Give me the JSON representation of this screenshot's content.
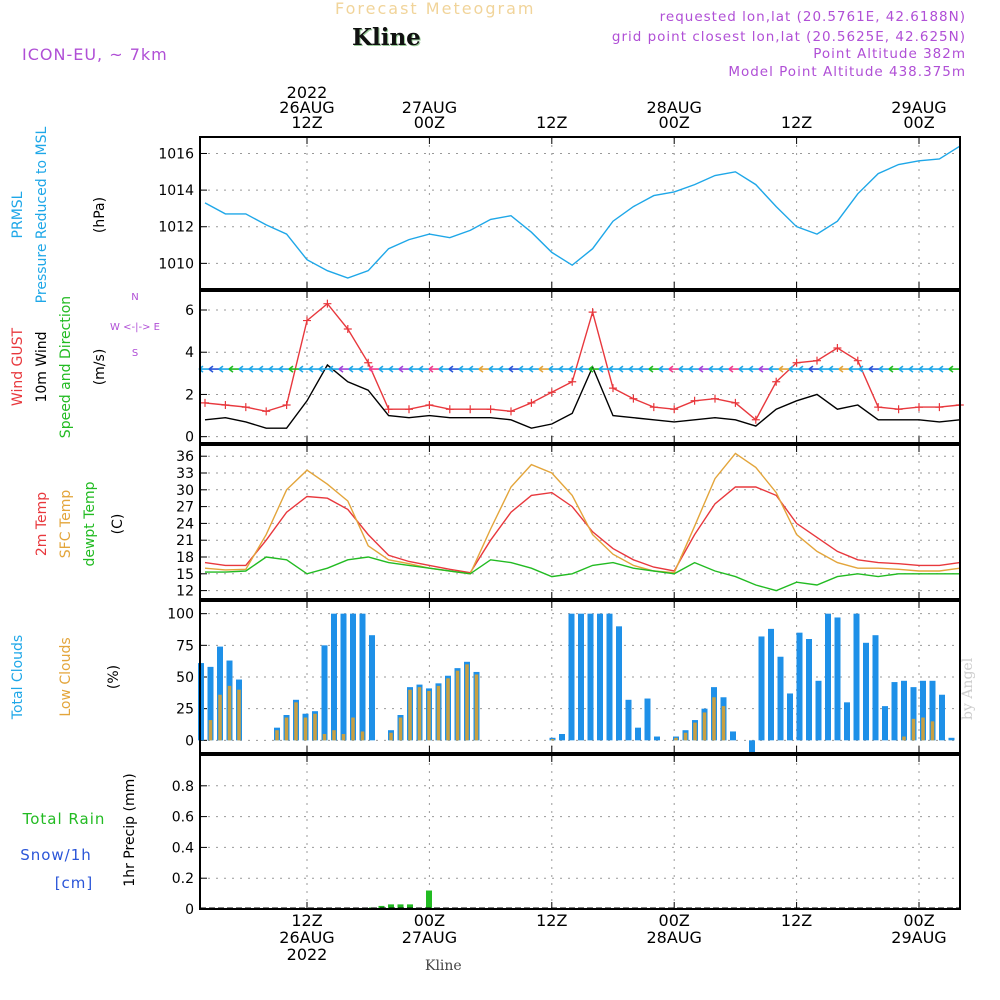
{
  "header": {
    "top_label": "Forecast Meteogram",
    "location": "Kline",
    "model": "ICON-EU, ~ 7km",
    "info_lines": [
      "requested lon,lat (20.5761E, 42.6188N)",
      "grid point closest lon,lat (20.5625E, 42.625N)",
      "Point Altitude 382m",
      "Model Point Altitude 438.375m"
    ]
  },
  "footer": {
    "location": "Kline",
    "credit": "by Angel"
  },
  "time_axis": {
    "top_ticks": [
      {
        "i": 5,
        "lines": [
          "2022",
          "26AUG",
          "12Z"
        ]
      },
      {
        "i": 11,
        "lines": [
          "27AUG",
          "00Z"
        ]
      },
      {
        "i": 17,
        "lines": [
          "12Z"
        ]
      },
      {
        "i": 23,
        "lines": [
          "28AUG",
          "00Z"
        ]
      },
      {
        "i": 29,
        "lines": [
          "12Z"
        ]
      },
      {
        "i": 35,
        "lines": [
          "29AUG",
          "00Z"
        ]
      }
    ],
    "bottom_ticks": [
      {
        "i": 5,
        "lines": [
          "12Z",
          "26AUG",
          "2022"
        ]
      },
      {
        "i": 11,
        "lines": [
          "00Z",
          "27AUG"
        ]
      },
      {
        "i": 17,
        "lines": [
          "12Z"
        ]
      },
      {
        "i": 23,
        "lines": [
          "00Z",
          "28AUG"
        ]
      },
      {
        "i": 29,
        "lines": [
          "12Z"
        ]
      },
      {
        "i": 35,
        "lines": [
          "00Z",
          "29AUG"
        ]
      }
    ]
  },
  "chart_data": [
    {
      "type": "line",
      "panel": "pressure",
      "ylabel_lines": [
        "PRMSL",
        "Pressure Reduced to MSL"
      ],
      "unit": "(hPa)",
      "yticks": [
        1010,
        1012,
        1014,
        1016
      ],
      "ylim": [
        1008.6,
        1016.9
      ],
      "grid": true,
      "series": [
        {
          "name": "PRMSL",
          "color": "#1ea7e8",
          "values": [
            1013.3,
            1012.7,
            1012.7,
            1012.1,
            1011.6,
            1010.2,
            1009.6,
            1009.2,
            1009.6,
            1010.8,
            1011.3,
            1011.6,
            1011.4,
            1011.8,
            1012.4,
            1012.6,
            1011.7,
            1010.6,
            1009.9,
            1010.8,
            1012.3,
            1013.1,
            1013.7,
            1013.9,
            1014.3,
            1014.8,
            1015.0,
            1014.3,
            1013.1,
            1012.0,
            1011.6,
            1012.3,
            1013.8,
            1014.9,
            1015.4,
            1015.6,
            1015.7,
            1016.4
          ]
        }
      ]
    },
    {
      "type": "line",
      "panel": "wind",
      "ylabel_lines": [
        "Wind GUST",
        "10m Wind",
        "Speed and Direction"
      ],
      "unit": "(m/s)",
      "compass": [
        "N",
        "W <-|-> E",
        "S"
      ],
      "yticks": [
        0,
        2,
        4,
        6
      ],
      "ylim": [
        -0.3,
        6.9
      ],
      "grid": true,
      "series": [
        {
          "name": "Wind GUST",
          "color": "#e8383d",
          "values": [
            1.6,
            1.5,
            1.4,
            1.2,
            1.5,
            5.5,
            6.3,
            5.1,
            3.5,
            1.3,
            1.3,
            1.5,
            1.3,
            1.3,
            1.3,
            1.2,
            1.6,
            2.1,
            2.6,
            5.9,
            2.3,
            1.8,
            1.4,
            1.3,
            1.7,
            1.8,
            1.6,
            0.8,
            2.6,
            3.5,
            3.6,
            4.2,
            3.6,
            1.4,
            1.3,
            1.4,
            1.4,
            1.5
          ]
        },
        {
          "name": "10m Wind",
          "color": "#000000",
          "values": [
            0.8,
            0.9,
            0.7,
            0.4,
            0.4,
            1.7,
            3.4,
            2.6,
            2.2,
            1.0,
            0.9,
            1.0,
            0.9,
            0.9,
            0.9,
            0.8,
            0.4,
            0.6,
            1.1,
            3.3,
            1.0,
            0.9,
            0.8,
            0.7,
            0.8,
            0.9,
            0.8,
            0.5,
            1.3,
            1.7,
            2.0,
            1.3,
            1.5,
            0.8,
            0.8,
            0.8,
            0.7,
            0.8
          ]
        }
      ],
      "direction_arrows_color": "#1ea7e8"
    },
    {
      "type": "line",
      "panel": "temperature",
      "ylabel_lines": [
        "2m Temp",
        "SFC Temp",
        "dewpt Temp"
      ],
      "unit": "(C)",
      "yticks": [
        12,
        15,
        18,
        21,
        24,
        27,
        30,
        33,
        36
      ],
      "ylim": [
        10.5,
        38
      ],
      "grid": true,
      "series": [
        {
          "name": "2m Temp",
          "color": "#e8383d",
          "values": [
            17.0,
            16.5,
            16.5,
            21.0,
            26.0,
            28.8,
            28.5,
            26.5,
            22.0,
            18.3,
            17.2,
            16.5,
            15.8,
            15.2,
            21.0,
            26.0,
            29.0,
            29.5,
            27.0,
            22.5,
            19.5,
            17.5,
            16.2,
            15.5,
            22.0,
            27.5,
            30.5,
            30.5,
            29.0,
            24.0,
            21.5,
            19.0,
            17.5,
            17.0,
            16.8,
            16.5,
            16.5,
            17.0
          ]
        },
        {
          "name": "SFC Temp",
          "color": "#e3a53b",
          "values": [
            16.0,
            15.7,
            15.8,
            22.0,
            30.0,
            33.5,
            31.0,
            28.0,
            20.0,
            17.5,
            16.8,
            16.0,
            15.5,
            15.0,
            23.0,
            30.5,
            34.5,
            33.0,
            29.0,
            22.0,
            18.5,
            16.5,
            15.5,
            15.2,
            23.5,
            32.0,
            36.5,
            34.0,
            29.5,
            22.0,
            19.0,
            17.0,
            16.0,
            16.0,
            15.8,
            15.5,
            15.5,
            16.0
          ]
        },
        {
          "name": "dewpt Temp",
          "color": "#22bb22",
          "values": [
            15.3,
            15.3,
            15.5,
            18.0,
            17.5,
            15.0,
            16.0,
            17.5,
            18.0,
            17.0,
            16.5,
            16.0,
            15.5,
            15.0,
            17.5,
            17.0,
            16.0,
            14.5,
            15.0,
            16.5,
            17.0,
            16.0,
            15.5,
            15.0,
            17.0,
            15.5,
            14.5,
            13.0,
            12.0,
            13.5,
            13.0,
            14.5,
            15.0,
            14.5,
            15.0,
            15.0,
            15.0,
            15.0
          ]
        }
      ]
    },
    {
      "type": "bar",
      "panel": "clouds",
      "ylabel_lines": [
        "Total Clouds",
        "Low Clouds"
      ],
      "unit": "(%)",
      "yticks": [
        0,
        25,
        50,
        75,
        100
      ],
      "ylim": [
        -10,
        110
      ],
      "grid": true,
      "series": [
        {
          "name": "Total Clouds",
          "color": "#1e90e8",
          "values": [
            61,
            58,
            74,
            63,
            48,
            0,
            0,
            0,
            10,
            20,
            32,
            21,
            23,
            75,
            100,
            100,
            100,
            100,
            83,
            0,
            8,
            20,
            42,
            44,
            41,
            45,
            51,
            57,
            62,
            54,
            0,
            0,
            0,
            0,
            0,
            0,
            0,
            2,
            5,
            100,
            100,
            100,
            100,
            100,
            90,
            32,
            10,
            33,
            3,
            0,
            3,
            8,
            16,
            25,
            42,
            34,
            7,
            0,
            -10,
            82,
            88,
            66,
            37,
            85,
            80,
            47,
            100,
            97,
            30,
            100,
            77,
            83,
            27,
            46,
            47,
            42,
            47,
            47,
            36,
            2
          ]
        },
        {
          "name": "Low Clouds",
          "color": "#c8a042",
          "values": [
            0,
            16,
            36,
            43,
            40,
            0,
            0,
            0,
            8,
            18,
            30,
            18,
            21,
            5,
            8,
            5,
            18,
            7,
            0,
            0,
            6,
            18,
            40,
            42,
            39,
            43,
            49,
            55,
            60,
            52,
            0,
            0,
            0,
            0,
            0,
            0,
            0,
            1,
            0,
            0,
            0,
            0,
            0,
            0,
            0,
            0,
            0,
            0,
            0,
            0,
            2,
            6,
            14,
            22,
            34,
            27,
            0,
            0,
            0,
            0,
            0,
            0,
            0,
            0,
            0,
            0,
            0,
            0,
            0,
            0,
            0,
            0,
            0,
            0,
            3,
            17,
            18,
            15,
            0,
            0
          ]
        }
      ]
    },
    {
      "type": "bar",
      "panel": "precip",
      "ylabel_lines": [
        "1hr Precip (mm)"
      ],
      "side_labels": [
        "Total Rain",
        "Snow/1h",
        "[cm]"
      ],
      "yticks": [
        "0",
        "0.2",
        "0.4",
        "0.6",
        "0.8"
      ],
      "ylim": [
        0,
        1.0
      ],
      "grid": true,
      "series": [
        {
          "name": "Total Rain",
          "color": "#22bb22",
          "values": [
            0,
            0,
            0,
            0,
            0,
            0,
            0,
            0,
            0,
            0,
            0,
            0,
            0,
            0,
            0,
            0,
            0,
            0,
            0.01,
            0.02,
            0.03,
            0.03,
            0.03,
            0,
            0.12,
            0,
            0,
            0,
            0,
            0,
            0,
            0,
            0,
            0,
            0,
            0,
            0,
            0,
            0,
            0,
            0,
            0,
            0,
            0,
            0,
            0,
            0,
            0,
            0,
            0,
            0,
            0,
            0,
            0,
            0,
            0,
            0,
            0,
            0,
            0,
            0,
            0,
            0,
            0,
            0,
            0,
            0,
            0,
            0,
            0,
            0,
            0,
            0,
            0,
            0,
            0,
            0,
            0,
            0,
            0
          ]
        }
      ]
    }
  ]
}
